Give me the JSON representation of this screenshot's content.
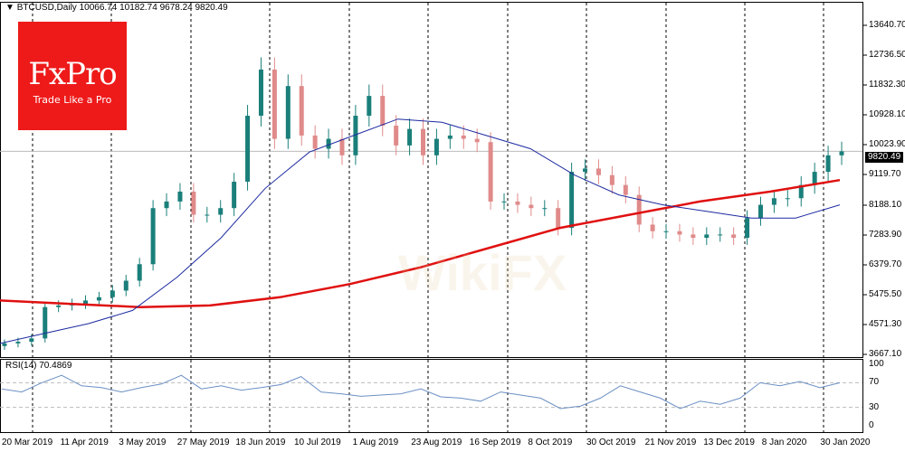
{
  "header": {
    "symbol_title": "BTCUSD,Daily",
    "ohlc": "10066.74 10182.74 9678.24 9820.49"
  },
  "logo": {
    "brand": "FxPro",
    "tagline": "Trade Like a Pro"
  },
  "watermark": "WikiFX",
  "colors": {
    "bull": "#1a7f7a",
    "bear": "#e08a8a",
    "ma_slow": "#e01010",
    "ma_fast": "#1c2aa0",
    "rsi": "#6b8fc4",
    "logo_bg": "#ee1a1a"
  },
  "price_axis": {
    "ticks": [
      "13640.70",
      "12736.50",
      "11832.30",
      "10928.10",
      "10023.90",
      "9119.70",
      "8188.10",
      "7283.90",
      "6379.70",
      "5475.50",
      "4571.30",
      "3667.10"
    ],
    "last_price": "9820.49"
  },
  "rsi": {
    "label": "RSI(14) 70.4869",
    "ticks": [
      "100",
      "70",
      "30",
      "0"
    ]
  },
  "date_axis": [
    "20 Mar 2019",
    "11 Apr 2019",
    "3 May 2019",
    "27 May 2019",
    "18 Jun 2019",
    "10 Jul 2019",
    "1 Aug 2019",
    "23 Aug 2019",
    "16 Sep 2019",
    "8 Oct 2019",
    "30 Oct 2019",
    "21 Nov 2019",
    "13 Dec 2019",
    "8 Jan 2020",
    "30 Jan 2020"
  ],
  "chart_data": {
    "type": "candlestick",
    "title": "BTCUSD,Daily",
    "ylim": [
      3667.1,
      13640.7
    ],
    "closes": [
      4000,
      4050,
      4150,
      5100,
      5150,
      5200,
      5300,
      5400,
      5600,
      5900,
      6400,
      8100,
      8300,
      8600,
      7900,
      7900,
      8100,
      8900,
      10900,
      12300,
      10200,
      11800,
      10300,
      9900,
      10200,
      9700,
      10900,
      11500,
      10600,
      10000,
      10500,
      9700,
      10200,
      10300,
      10200,
      10100,
      8300,
      8300,
      8200,
      8100,
      8100,
      7500,
      9200,
      9300,
      9100,
      8800,
      8500,
      7600,
      7400,
      7400,
      7300,
      7200,
      7300,
      7300,
      7200,
      7800,
      8200,
      8400,
      8400,
      8800,
      9200,
      9700,
      9820
    ],
    "ma_slow": [
      5300,
      5200,
      5100,
      5150,
      5400,
      5800,
      6300,
      6900,
      7500,
      7900,
      8300,
      8600,
      8950
    ],
    "ma_fast": [
      4000,
      4300,
      4600,
      5000,
      6000,
      7200,
      8700,
      9800,
      10300,
      10800,
      10700,
      10300,
      9900,
      9100,
      8500,
      8200,
      8000,
      7800,
      7800,
      8200
    ],
    "rsi_values": [
      60,
      55,
      70,
      82,
      65,
      62,
      55,
      62,
      68,
      82,
      60,
      65,
      58,
      62,
      67,
      80,
      55,
      52,
      48,
      50,
      52,
      60,
      47,
      45,
      40,
      55,
      50,
      45,
      28,
      32,
      45,
      65,
      55,
      45,
      28,
      40,
      35,
      45,
      70,
      65,
      72,
      62,
      70
    ]
  }
}
